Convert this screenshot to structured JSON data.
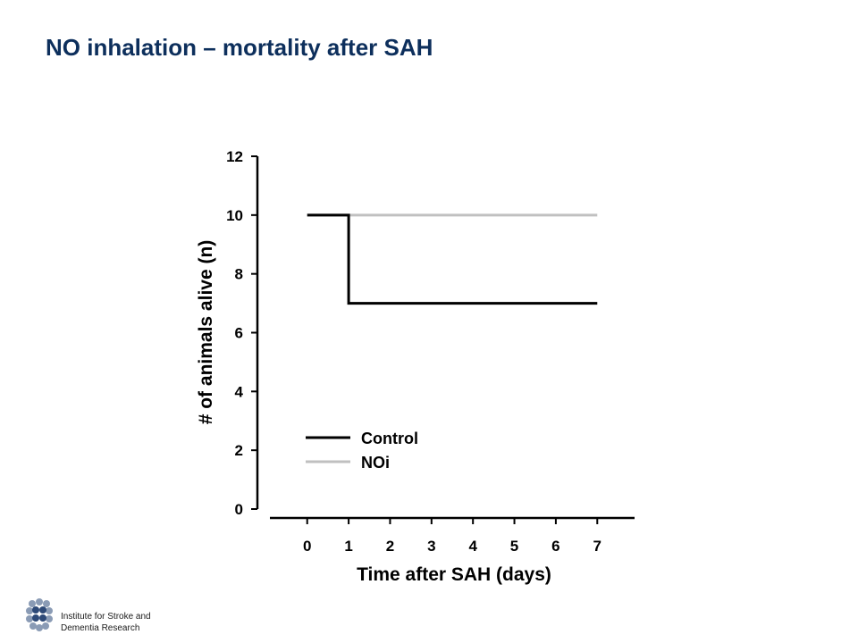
{
  "slide": {
    "title": "NO inhalation – mortality after SAH"
  },
  "institute": {
    "line1": "Institute for Stroke and",
    "line2": "Dementia Research"
  },
  "colors": {
    "title": "#0d2f5c",
    "control": "#000000",
    "noi": "#c0c0c0",
    "logo": "#8a9bb5"
  },
  "logo_icon": "brain-icon",
  "chart_data": {
    "type": "line",
    "step": true,
    "xlabel": "Time after SAH (days)",
    "ylabel": "# of animals alive (n)",
    "xlim": [
      -0.9,
      7.9
    ],
    "ylim": [
      0,
      12
    ],
    "xticks": [
      0,
      1,
      2,
      3,
      4,
      5,
      6,
      7
    ],
    "yticks": [
      0,
      2,
      4,
      6,
      8,
      10,
      12
    ],
    "grid": false,
    "legend_position": "bottom-left",
    "series": [
      {
        "name": "Control",
        "color": "#000000",
        "x": [
          0,
          1,
          2,
          3,
          4,
          5,
          6,
          7
        ],
        "y": [
          10,
          7,
          7,
          7,
          7,
          7,
          7,
          7
        ]
      },
      {
        "name": "NOi",
        "color": "#c0c0c0",
        "x": [
          0,
          1,
          2,
          3,
          4,
          5,
          6,
          7
        ],
        "y": [
          10,
          10,
          10,
          10,
          10,
          10,
          10,
          10
        ]
      }
    ]
  }
}
